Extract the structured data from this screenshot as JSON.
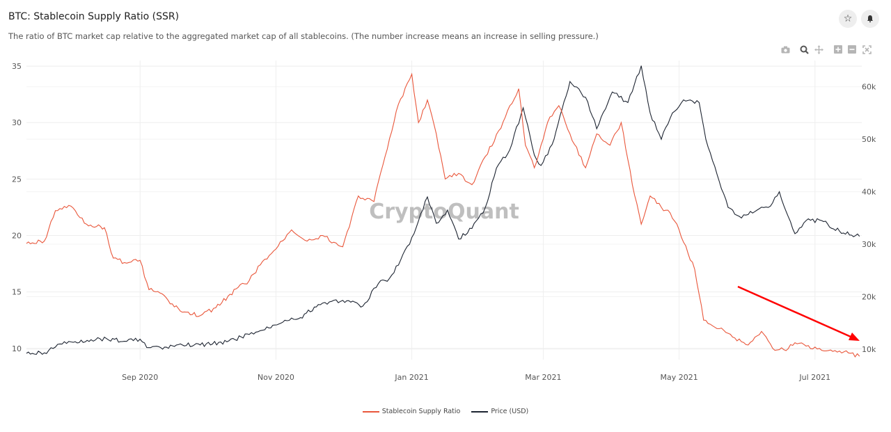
{
  "header": {
    "title": "BTC: Stablecoin Supply Ratio (SSR)",
    "subtitle": "The ratio of BTC market cap relative to the aggregated market cap of all stablecoins. (The number increase means an increase in selling pressure.)"
  },
  "actions": {
    "favorite_icon": "star-icon",
    "alert_icon": "bell-icon"
  },
  "modebar": [
    "camera-icon",
    "zoom-icon",
    "pan-icon",
    "zoom-in-icon",
    "zoom-out-icon",
    "autoscale-icon"
  ],
  "watermark": "CryptoQuant",
  "colors": {
    "ssr": "#e9563a",
    "price": "#1c2330",
    "arrow": "#ff0000"
  },
  "legend": {
    "ssr_label": "Stablecoin Supply Ratio",
    "price_label": "Price (USD)"
  },
  "chart_data": {
    "type": "line",
    "x_ticks": [
      "Sep 2020",
      "Nov 2020",
      "Jan 2021",
      "Mar 2021",
      "May 2021",
      "Jul 2021"
    ],
    "y_left_ticks": [
      "10",
      "15",
      "20",
      "25",
      "30",
      "35"
    ],
    "y_right_ticks": [
      "10k",
      "20k",
      "30k",
      "40k",
      "50k",
      "60k"
    ],
    "ylim_left": [
      9,
      35.5
    ],
    "ylim_right": [
      8000,
      65000
    ],
    "grid": true,
    "legend_position": "bottom",
    "series": [
      {
        "name": "Stablecoin Supply Ratio",
        "axis": "left",
        "x": [
          "2020-07-12",
          "2020-07-20",
          "2020-07-25",
          "2020-08-01",
          "2020-08-08",
          "2020-08-16",
          "2020-08-20",
          "2020-08-25",
          "2020-09-01",
          "2020-09-05",
          "2020-09-10",
          "2020-09-20",
          "2020-09-28",
          "2020-10-05",
          "2020-10-15",
          "2020-10-20",
          "2020-10-25",
          "2020-11-01",
          "2020-11-08",
          "2020-11-15",
          "2020-11-22",
          "2020-11-27",
          "2020-12-01",
          "2020-12-08",
          "2020-12-15",
          "2020-12-20",
          "2020-12-25",
          "2021-01-01",
          "2021-01-04",
          "2021-01-08",
          "2021-01-12",
          "2021-01-16",
          "2021-01-22",
          "2021-01-28",
          "2021-02-03",
          "2021-02-10",
          "2021-02-14",
          "2021-02-18",
          "2021-02-21",
          "2021-02-25",
          "2021-02-28",
          "2021-03-04",
          "2021-03-08",
          "2021-03-13",
          "2021-03-20",
          "2021-03-25",
          "2021-03-31",
          "2021-04-05",
          "2021-04-10",
          "2021-04-14",
          "2021-04-18",
          "2021-04-23",
          "2021-04-27",
          "2021-05-01",
          "2021-05-08",
          "2021-05-12",
          "2021-05-16",
          "2021-05-20",
          "2021-05-25",
          "2021-06-01",
          "2021-06-07",
          "2021-06-12",
          "2021-06-18",
          "2021-06-22",
          "2021-06-27",
          "2021-07-03",
          "2021-07-10",
          "2021-07-16",
          "2021-07-21"
        ],
        "values": [
          19.3,
          19.5,
          22.2,
          22.6,
          21.0,
          20.7,
          18.0,
          17.6,
          17.8,
          15.2,
          14.9,
          13.2,
          12.9,
          13.6,
          15.4,
          16.0,
          17.4,
          18.8,
          20.5,
          19.5,
          20.0,
          19.4,
          19.0,
          23.5,
          23.0,
          27.0,
          31.0,
          34.3,
          30.0,
          32.0,
          29.0,
          25.0,
          25.5,
          24.5,
          27.0,
          29.5,
          31.5,
          33.0,
          28.0,
          26.0,
          28.0,
          30.5,
          31.5,
          29.0,
          26.0,
          29.0,
          28.0,
          30.0,
          24.5,
          21.0,
          23.5,
          22.5,
          22.0,
          20.5,
          17.0,
          12.5,
          12.0,
          11.8,
          11.0,
          10.3,
          11.5,
          10.0,
          9.8,
          10.5,
          10.2,
          10.0,
          9.8,
          9.6,
          9.3
        ]
      },
      {
        "name": "Price (USD)",
        "axis": "right",
        "x": [
          "2020-07-12",
          "2020-07-20",
          "2020-07-27",
          "2020-08-02",
          "2020-08-10",
          "2020-08-17",
          "2020-08-25",
          "2020-09-01",
          "2020-09-04",
          "2020-09-12",
          "2020-09-20",
          "2020-09-28",
          "2020-10-10",
          "2020-10-20",
          "2020-10-27",
          "2020-11-05",
          "2020-11-12",
          "2020-11-20",
          "2020-11-25",
          "2020-12-01",
          "2020-12-10",
          "2020-12-17",
          "2020-12-22",
          "2020-12-27",
          "2021-01-02",
          "2021-01-08",
          "2021-01-12",
          "2021-01-17",
          "2021-01-22",
          "2021-01-28",
          "2021-02-03",
          "2021-02-08",
          "2021-02-14",
          "2021-02-20",
          "2021-02-25",
          "2021-02-28",
          "2021-03-05",
          "2021-03-13",
          "2021-03-20",
          "2021-03-25",
          "2021-04-01",
          "2021-04-08",
          "2021-04-14",
          "2021-04-18",
          "2021-04-23",
          "2021-04-28",
          "2021-05-03",
          "2021-05-10",
          "2021-05-13",
          "2021-05-19",
          "2021-05-23",
          "2021-05-29",
          "2021-06-05",
          "2021-06-10",
          "2021-06-15",
          "2021-06-22",
          "2021-06-27",
          "2021-07-04",
          "2021-07-12",
          "2021-07-21"
        ],
        "values": [
          9200,
          9300,
          11000,
          11300,
          11800,
          12000,
          11500,
          11900,
          10300,
          10400,
          10800,
          10800,
          11400,
          12800,
          13700,
          15500,
          16000,
          18500,
          19000,
          19300,
          18200,
          22500,
          23500,
          27000,
          32000,
          39000,
          34000,
          36500,
          31000,
          33000,
          37000,
          44500,
          48000,
          56000,
          47000,
          45000,
          49000,
          61000,
          58000,
          52000,
          59000,
          57000,
          64000,
          55000,
          50000,
          55000,
          57500,
          57000,
          50000,
          42000,
          37000,
          35000,
          36500,
          37000,
          40000,
          32000,
          34500,
          34500,
          32500,
          31500
        ]
      }
    ]
  }
}
